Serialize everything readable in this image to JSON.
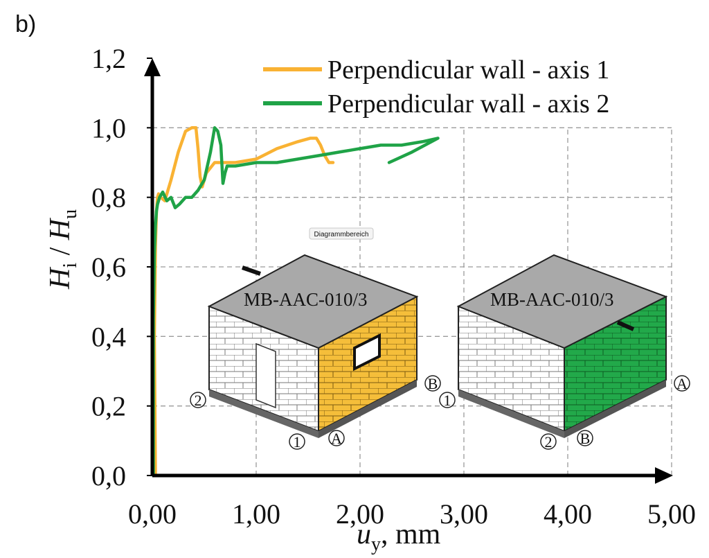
{
  "panel_label": "b)",
  "tooltip": "Diagrammbereich",
  "colors": {
    "axis1": "#F9B233",
    "axis2": "#1FA347",
    "grid": "#9a9a9a"
  },
  "chart_data": {
    "type": "line",
    "title": "",
    "xlabel_var": "u",
    "xlabel_sub": "y",
    "xlabel_unit": ", mm",
    "ylabel_num": "H",
    "ylabel_num_sub": "i",
    "ylabel_sep": " / ",
    "ylabel_den": "H",
    "ylabel_den_sub": "u",
    "xlim": [
      0,
      5
    ],
    "ylim": [
      0,
      1.2
    ],
    "x_ticks": [
      "0,00",
      "1,00",
      "2,00",
      "3,00",
      "4,00",
      "5,00"
    ],
    "y_ticks": [
      "0,0",
      "0,2",
      "0,4",
      "0,6",
      "0,8",
      "1,0",
      "1,2"
    ],
    "grid": true,
    "legend_position": "top-right",
    "series": [
      {
        "name": "Perpendicular wall - axis 1",
        "color": "#F9B233",
        "x": [
          0.03,
          0.02,
          0.03,
          0.04,
          0.05,
          0.06,
          0.08,
          0.12,
          0.18,
          0.25,
          0.32,
          0.38,
          0.42,
          0.44,
          0.46,
          0.48,
          0.52,
          0.6,
          0.8,
          1.0,
          1.2,
          1.4,
          1.52,
          1.58,
          1.62,
          1.66,
          1.7,
          1.74
        ],
        "y": [
          0.0,
          0.4,
          0.66,
          0.76,
          0.8,
          0.81,
          0.8,
          0.79,
          0.85,
          0.93,
          0.99,
          1.0,
          1.0,
          0.94,
          0.86,
          0.83,
          0.87,
          0.9,
          0.9,
          0.91,
          0.94,
          0.96,
          0.97,
          0.97,
          0.95,
          0.92,
          0.9,
          0.9
        ]
      },
      {
        "name": "Perpendicular wall - axis 2",
        "color": "#1FA347",
        "x": [
          0.01,
          0.01,
          0.02,
          0.03,
          0.04,
          0.05,
          0.07,
          0.1,
          0.14,
          0.18,
          0.22,
          0.26,
          0.32,
          0.38,
          0.44,
          0.5,
          0.56,
          0.6,
          0.63,
          0.66,
          0.68,
          0.7,
          0.72,
          0.8,
          1.0,
          1.2,
          1.4,
          1.6,
          1.8,
          2.0,
          2.2,
          2.4,
          2.6,
          2.75,
          2.5,
          2.28
        ],
        "y": [
          0.0,
          0.45,
          0.64,
          0.72,
          0.76,
          0.78,
          0.8,
          0.815,
          0.79,
          0.8,
          0.77,
          0.78,
          0.8,
          0.8,
          0.82,
          0.85,
          0.93,
          1.0,
          0.99,
          0.95,
          0.84,
          0.87,
          0.89,
          0.89,
          0.9,
          0.9,
          0.91,
          0.92,
          0.93,
          0.94,
          0.95,
          0.95,
          0.96,
          0.97,
          0.93,
          0.9
        ]
      }
    ],
    "insets": [
      {
        "label": "MB-AAC-010/3",
        "axis_markers": [
          "2",
          "1",
          "A",
          "B"
        ],
        "highlight_color": "#F5BE3A"
      },
      {
        "label": "MB-AAC-010/3",
        "axis_markers": [
          "1",
          "2",
          "B",
          "A"
        ],
        "highlight_color": "#22A94A"
      }
    ]
  }
}
